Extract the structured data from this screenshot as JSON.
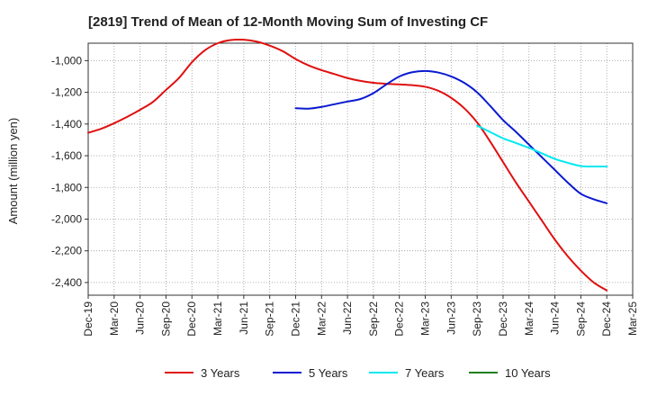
{
  "chart_data": {
    "type": "line",
    "title": "[2819]  Trend of Mean of 12-Month Moving Sum of Investing CF",
    "xlabel": "",
    "ylabel": "Amount (million yen)",
    "x_ticks": [
      "Dec-19",
      "Mar-20",
      "Jun-20",
      "Sep-20",
      "Dec-20",
      "Mar-21",
      "Jun-21",
      "Sep-21",
      "Dec-21",
      "Mar-22",
      "Jun-22",
      "Sep-22",
      "Dec-22",
      "Mar-23",
      "Jun-23",
      "Sep-23",
      "Dec-23",
      "Mar-24",
      "Jun-24",
      "Sep-24",
      "Dec-24",
      "Mar-25"
    ],
    "y_ticks": [
      -1000,
      -1200,
      -1400,
      -1600,
      -1800,
      -2000,
      -2200,
      -2400
    ],
    "y_tick_labels": [
      "-1,000",
      "-1,200",
      "-1,400",
      "-1,600",
      "-1,800",
      "-2,000",
      "-2,200",
      "-2,400"
    ],
    "ylim": [
      -2480,
      -890
    ],
    "grid": true,
    "legend_position": "bottom",
    "series": [
      {
        "name": "3 Years",
        "color": "#e01010",
        "points": [
          [
            0,
            -1455
          ],
          [
            0.5,
            -1430
          ],
          [
            1,
            -1395
          ],
          [
            1.5,
            -1355
          ],
          [
            2,
            -1310
          ],
          [
            2.5,
            -1260
          ],
          [
            3,
            -1185
          ],
          [
            3.5,
            -1110
          ],
          [
            4,
            -1010
          ],
          [
            4.5,
            -935
          ],
          [
            5,
            -890
          ],
          [
            5.5,
            -870
          ],
          [
            6,
            -868
          ],
          [
            6.5,
            -880
          ],
          [
            7,
            -905
          ],
          [
            7.5,
            -940
          ],
          [
            8,
            -990
          ],
          [
            8.5,
            -1030
          ],
          [
            9,
            -1060
          ],
          [
            9.5,
            -1085
          ],
          [
            10,
            -1110
          ],
          [
            10.5,
            -1128
          ],
          [
            11,
            -1140
          ],
          [
            11.5,
            -1146
          ],
          [
            12,
            -1150
          ],
          [
            12.5,
            -1155
          ],
          [
            13,
            -1165
          ],
          [
            13.5,
            -1190
          ],
          [
            14,
            -1235
          ],
          [
            14.5,
            -1300
          ],
          [
            15,
            -1390
          ],
          [
            15.5,
            -1510
          ],
          [
            16,
            -1640
          ],
          [
            16.5,
            -1770
          ],
          [
            17,
            -1890
          ],
          [
            17.5,
            -2010
          ],
          [
            18,
            -2130
          ],
          [
            18.5,
            -2235
          ],
          [
            19,
            -2325
          ],
          [
            19.5,
            -2400
          ],
          [
            20,
            -2450
          ]
        ]
      },
      {
        "name": "5 Years",
        "color": "#0a1ad0",
        "points": [
          [
            8,
            -1300
          ],
          [
            8.5,
            -1303
          ],
          [
            9,
            -1292
          ],
          [
            9.5,
            -1275
          ],
          [
            10,
            -1258
          ],
          [
            10.5,
            -1242
          ],
          [
            11,
            -1205
          ],
          [
            11.5,
            -1150
          ],
          [
            12,
            -1100
          ],
          [
            12.5,
            -1073
          ],
          [
            13,
            -1065
          ],
          [
            13.5,
            -1075
          ],
          [
            14,
            -1100
          ],
          [
            14.5,
            -1140
          ],
          [
            15,
            -1200
          ],
          [
            15.5,
            -1285
          ],
          [
            16,
            -1375
          ],
          [
            16.5,
            -1450
          ],
          [
            17,
            -1530
          ],
          [
            17.5,
            -1610
          ],
          [
            18,
            -1690
          ],
          [
            18.5,
            -1770
          ],
          [
            19,
            -1840
          ],
          [
            19.5,
            -1875
          ],
          [
            20,
            -1900
          ]
        ]
      },
      {
        "name": "7 Years",
        "color": "#00e8f0",
        "points": [
          [
            15,
            -1410
          ],
          [
            15.5,
            -1450
          ],
          [
            16,
            -1490
          ],
          [
            16.5,
            -1520
          ],
          [
            17,
            -1550
          ],
          [
            17.5,
            -1585
          ],
          [
            18,
            -1620
          ],
          [
            18.5,
            -1645
          ],
          [
            19,
            -1665
          ],
          [
            19.5,
            -1668
          ],
          [
            20,
            -1668
          ]
        ]
      },
      {
        "name": "10 Years",
        "color": "#208020",
        "points": []
      }
    ]
  }
}
